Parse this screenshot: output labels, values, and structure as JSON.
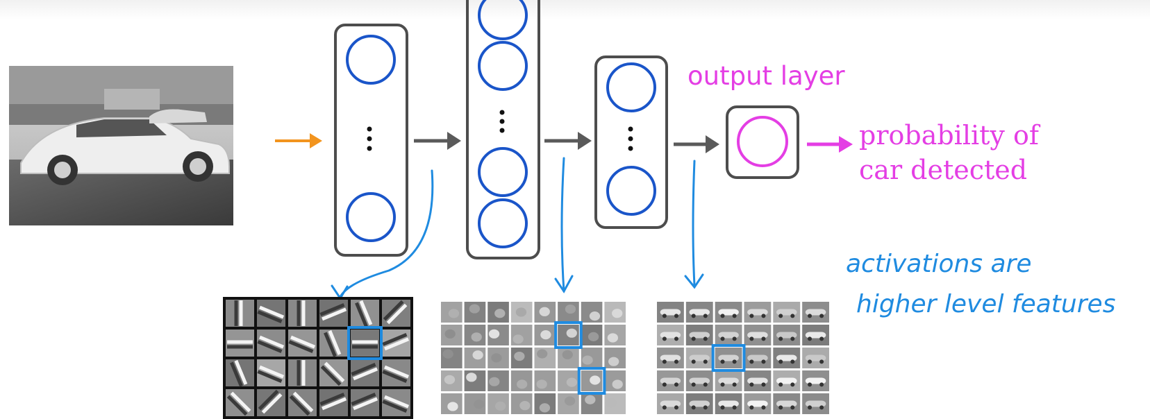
{
  "output_layer_label": "output layer",
  "probability_label": {
    "line1": "probability of",
    "line2": "car detected"
  },
  "annotation": {
    "line1": "activations are",
    "line2": "higher level features"
  },
  "layers": [
    {
      "name": "hidden-layer-1",
      "neurons_drawn": 2
    },
    {
      "name": "hidden-layer-2",
      "neurons_drawn": 4
    },
    {
      "name": "hidden-layer-3",
      "neurons_drawn": 2
    },
    {
      "name": "output-layer",
      "neurons_drawn": 1
    }
  ],
  "feature_grids": [
    {
      "name": "edge-features",
      "rows": 4,
      "cols": 6
    },
    {
      "name": "part-features",
      "rows": 5,
      "cols": 8
    },
    {
      "name": "car-features",
      "rows": 5,
      "cols": 6
    }
  ],
  "colors": {
    "neuron": "#1a55c9",
    "output_neuron": "#e43ee4",
    "layer_box": "#4d4d4d",
    "input_arrow": "#f2941e",
    "arrow": "#5a5a5a",
    "output_arrow": "#e43ee4",
    "annotation": "#1f8be0",
    "highlight": "#1f8be0"
  }
}
